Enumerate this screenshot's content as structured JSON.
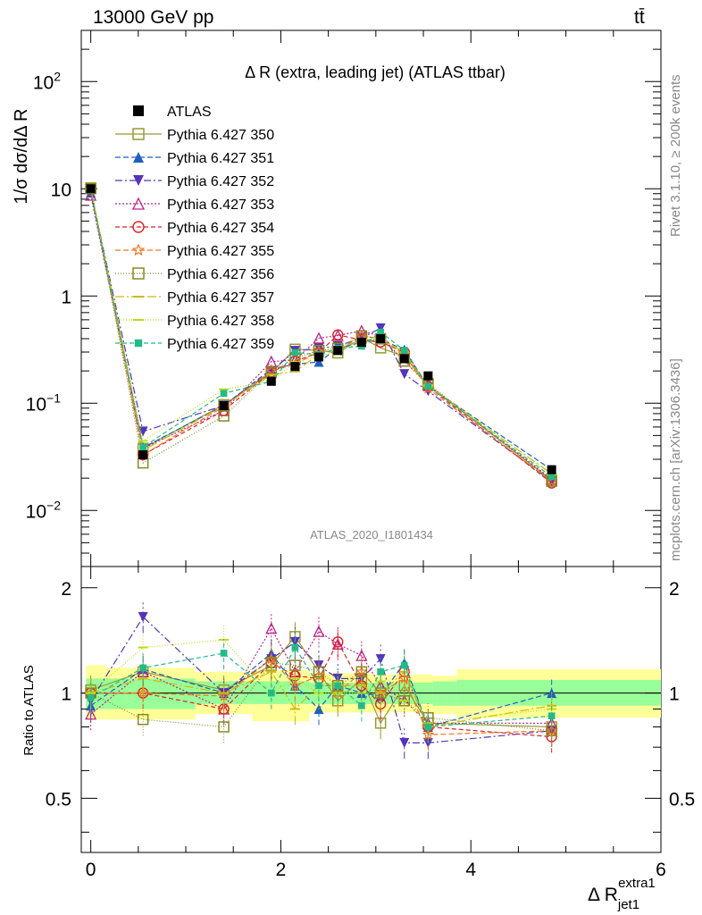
{
  "header": {
    "left": "13000 GeV pp",
    "right": "tt̄"
  },
  "plot_title": "Δ R (extra, leading jet) (ATLAS ttbar)",
  "ylabel_main": "1/σ dσ/dΔ R",
  "ylabel_ratio": "Ratio to ATLAS",
  "xlabel": "Δ R",
  "xlabel_sub": "jet1",
  "xlabel_sup": "extra1",
  "watermark": "ATLAS_2020_I1801434",
  "side_text_top": "Rivet 3.1.10, ≥ 200k events",
  "side_text_bottom": "mcplots.cern.ch [arXiv:1306.3436]",
  "main_ticks": [
    {
      "v": 0.01,
      "label": "10",
      "exp": "−2"
    },
    {
      "v": 0.1,
      "label": "10",
      "exp": "−1"
    },
    {
      "v": 1,
      "label": "1",
      "exp": ""
    },
    {
      "v": 10,
      "label": "10",
      "exp": ""
    },
    {
      "v": 100,
      "label": "10",
      "exp": "2"
    }
  ],
  "ratio_ticks": [
    {
      "v": 0.5,
      "label": "0.5"
    },
    {
      "v": 1,
      "label": "1"
    },
    {
      "v": 2,
      "label": "2"
    }
  ],
  "x_ticks": [
    {
      "v": 0,
      "label": "0"
    },
    {
      "v": 2,
      "label": "2"
    },
    {
      "v": 4,
      "label": "4"
    },
    {
      "v": 6,
      "label": "6"
    }
  ],
  "chart_data": {
    "type": "scatter",
    "x_range": [
      -0.1,
      6.0
    ],
    "main_y_range": [
      0.003,
      300
    ],
    "main_y_scale": "log",
    "ratio_y_range": [
      0.35,
      2.3
    ],
    "ratio_y_scale": "log",
    "legend_position": "top-left",
    "x": [
      0.0,
      0.55,
      1.4,
      1.9,
      2.15,
      2.4,
      2.6,
      2.85,
      3.05,
      3.3,
      3.55,
      4.85
    ],
    "reference": {
      "name": "ATLAS",
      "values": [
        10.0,
        0.033,
        0.095,
        0.16,
        0.22,
        0.27,
        0.31,
        0.37,
        0.4,
        0.26,
        0.18,
        0.024
      ],
      "band_inner": [
        {
          "x0": -0.05,
          "x1": 0.15,
          "lo": 0.9,
          "hi": 1.1
        },
        {
          "x0": 0.15,
          "x1": 1.1,
          "lo": 0.9,
          "hi": 1.1
        },
        {
          "x0": 1.1,
          "x1": 1.7,
          "lo": 0.93,
          "hi": 1.08
        },
        {
          "x0": 1.7,
          "x1": 2.3,
          "lo": 0.93,
          "hi": 1.08
        },
        {
          "x0": 2.3,
          "x1": 2.95,
          "lo": 0.93,
          "hi": 1.07
        },
        {
          "x0": 2.95,
          "x1": 3.6,
          "lo": 0.93,
          "hi": 1.07
        },
        {
          "x0": 3.6,
          "x1": 3.85,
          "lo": 0.92,
          "hi": 1.08
        },
        {
          "x0": 3.85,
          "x1": 6.0,
          "lo": 0.92,
          "hi": 1.09
        }
      ],
      "band_outer": [
        {
          "x0": -0.05,
          "x1": 0.15,
          "lo": 0.84,
          "hi": 1.2
        },
        {
          "x0": 0.15,
          "x1": 1.1,
          "lo": 0.84,
          "hi": 1.18
        },
        {
          "x0": 1.1,
          "x1": 1.7,
          "lo": 0.87,
          "hi": 1.15
        },
        {
          "x0": 1.7,
          "x1": 2.3,
          "lo": 0.83,
          "hi": 1.16
        },
        {
          "x0": 2.3,
          "x1": 2.95,
          "lo": 0.88,
          "hi": 1.14
        },
        {
          "x0": 2.95,
          "x1": 3.6,
          "lo": 0.88,
          "hi": 1.13
        },
        {
          "x0": 3.6,
          "x1": 3.85,
          "lo": 0.87,
          "hi": 1.12
        },
        {
          "x0": 3.85,
          "x1": 6.0,
          "lo": 0.85,
          "hi": 1.17
        }
      ]
    },
    "series": [
      {
        "name": "Pythia 6.427 350",
        "color": "#999933",
        "marker": "square-open",
        "dash": "",
        "ratio": [
          1.02,
          1.15,
          1.02,
          1.2,
          1.45,
          1.15,
          0.95,
          1.1,
          0.82,
          1.05,
          0.82,
          0.8
        ]
      },
      {
        "name": "Pythia 6.427 351",
        "color": "#1f5fbf",
        "marker": "triangle-up",
        "dash": "6,3",
        "ratio": [
          0.92,
          1.17,
          1.0,
          1.3,
          1.05,
          0.9,
          1.05,
          1.0,
          0.98,
          1.22,
          0.8,
          1.0
        ]
      },
      {
        "name": "Pythia 6.427 352",
        "color": "#5533bb",
        "marker": "triangle-down",
        "dash": "8,3,2,3",
        "ratio": [
          0.95,
          1.65,
          1.0,
          1.25,
          1.4,
          1.2,
          1.1,
          1.1,
          1.25,
          0.72,
          0.72,
          0.78
        ]
      },
      {
        "name": "Pythia 6.427 353",
        "color": "#bb2288",
        "marker": "triangle-open",
        "dash": "2,2",
        "ratio": [
          0.87,
          1.15,
          0.9,
          1.53,
          1.15,
          1.5,
          1.38,
          1.28,
          1.05,
          0.95,
          0.82,
          0.82
        ]
      },
      {
        "name": "Pythia 6.427 354",
        "color": "#dd2222",
        "marker": "circle-open",
        "dash": "5,3",
        "ratio": [
          1.0,
          1.0,
          0.9,
          1.22,
          1.12,
          1.1,
          1.4,
          1.05,
          0.93,
          1.15,
          0.8,
          0.75
        ]
      },
      {
        "name": "Pythia 6.427 355",
        "color": "#ee7722",
        "marker": "star-open",
        "dash": "6,3",
        "ratio": [
          1.0,
          1.0,
          0.98,
          1.25,
          1.05,
          1.12,
          1.0,
          1.15,
          1.0,
          1.1,
          0.76,
          0.78
        ]
      },
      {
        "name": "Pythia 6.427 356",
        "color": "#888822",
        "marker": "square-open",
        "dash": "1,2",
        "ratio": [
          1.0,
          0.84,
          0.8,
          1.22,
          1.2,
          1.15,
          1.05,
          1.15,
          1.0,
          0.95,
          0.85,
          0.78
        ]
      },
      {
        "name": "Pythia 6.427 357",
        "color": "#ccbb11",
        "marker": "tick",
        "dash": "10,3,2,3",
        "ratio": [
          1.0,
          1.1,
          1.0,
          1.15,
          0.9,
          1.05,
          1.05,
          1.05,
          1.0,
          1.15,
          0.8,
          0.92
        ]
      },
      {
        "name": "Pythia 6.427 358",
        "color": "#bbdd11",
        "marker": "tick",
        "dash": "1,2",
        "ratio": [
          1.0,
          1.35,
          1.42,
          1.0,
          1.1,
          1.0,
          1.0,
          1.0,
          1.08,
          0.95,
          0.82,
          0.9
        ]
      },
      {
        "name": "Pythia 6.427 359",
        "color": "#22bb88",
        "marker": "square-small",
        "dash": "5,3",
        "ratio": [
          0.97,
          1.18,
          1.3,
          1.0,
          1.35,
          1.05,
          1.05,
          0.92,
          1.15,
          1.2,
          0.8,
          0.86
        ]
      }
    ]
  }
}
